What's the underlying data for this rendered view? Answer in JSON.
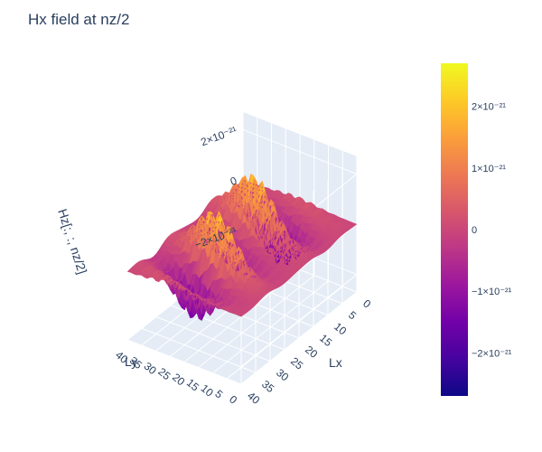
{
  "chart_data": {
    "type": "surface",
    "title": "Hx field at nz/2",
    "xlabel": "Lx",
    "ylabel": "Ly",
    "zlabel": "Hz[:, :, nz/2]",
    "x_ticks": [
      "0",
      "5",
      "10",
      "15",
      "20",
      "25",
      "30",
      "35",
      "40"
    ],
    "y_ticks": [
      "0",
      "5",
      "10",
      "15",
      "20",
      "25",
      "30",
      "35",
      "40"
    ],
    "z_ticks": [
      "2×10⁻²¹",
      "0",
      "−2×10⁻²¹"
    ],
    "xlim": [
      0,
      40
    ],
    "ylim": [
      0,
      40
    ],
    "zlim": [
      -2.7e-21,
      2.7e-21
    ],
    "colorscale": "plasma",
    "colorscale_stops": [
      "#0d0887",
      "#46039f",
      "#7201a8",
      "#9c179e",
      "#bd3786",
      "#d8576b",
      "#ed7953",
      "#fb9f3a",
      "#fdca26",
      "#f0f921"
    ],
    "colorbar": {
      "range": [
        -2.7e-21,
        2.7e-21
      ],
      "ticks": [
        {
          "value": 2e-21,
          "label": "2×10⁻²¹"
        },
        {
          "value": 1e-21,
          "label": "1×10⁻²¹"
        },
        {
          "value": 0,
          "label": "0"
        },
        {
          "value": -1e-21,
          "label": "−1×10⁻²¹"
        },
        {
          "value": -2e-21,
          "label": "−2×10⁻²¹"
        }
      ]
    },
    "grid": true
  }
}
